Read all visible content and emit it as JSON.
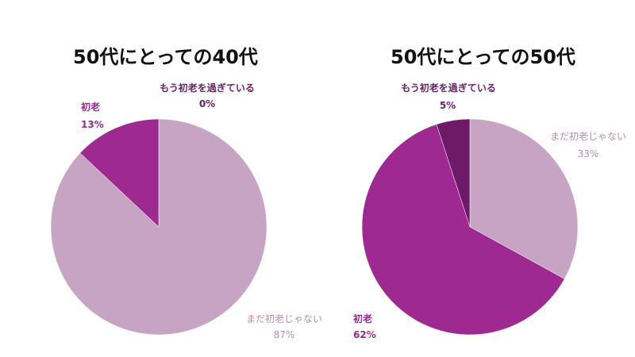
{
  "chart_data": [
    {
      "type": "pie",
      "title": "50代にとっての40代",
      "colors": {
        "まだ初老じゃない": "#c7a3c4",
        "初老": "#9e2a91",
        "もう初老を過ぎている": "#6e1a68"
      },
      "slices": [
        {
          "label": "もう初老を過ぎている",
          "value": 0,
          "display": "0%"
        },
        {
          "label": "まだ初老じゃない",
          "value": 87,
          "display": "87%"
        },
        {
          "label": "初老",
          "value": 13,
          "display": "13%"
        }
      ]
    },
    {
      "type": "pie",
      "title": "50代にとっての50代",
      "colors": {
        "まだ初老じゃない": "#c7a3c4",
        "初老": "#9e2a91",
        "もう初老を過ぎている": "#6e1a68"
      },
      "slices": [
        {
          "label": "まだ初老じゃない",
          "value": 33,
          "display": "33%"
        },
        {
          "label": "初老",
          "value": 62,
          "display": "62%"
        },
        {
          "label": "もう初老を過ぎている",
          "value": 5,
          "display": "5%"
        }
      ]
    }
  ]
}
